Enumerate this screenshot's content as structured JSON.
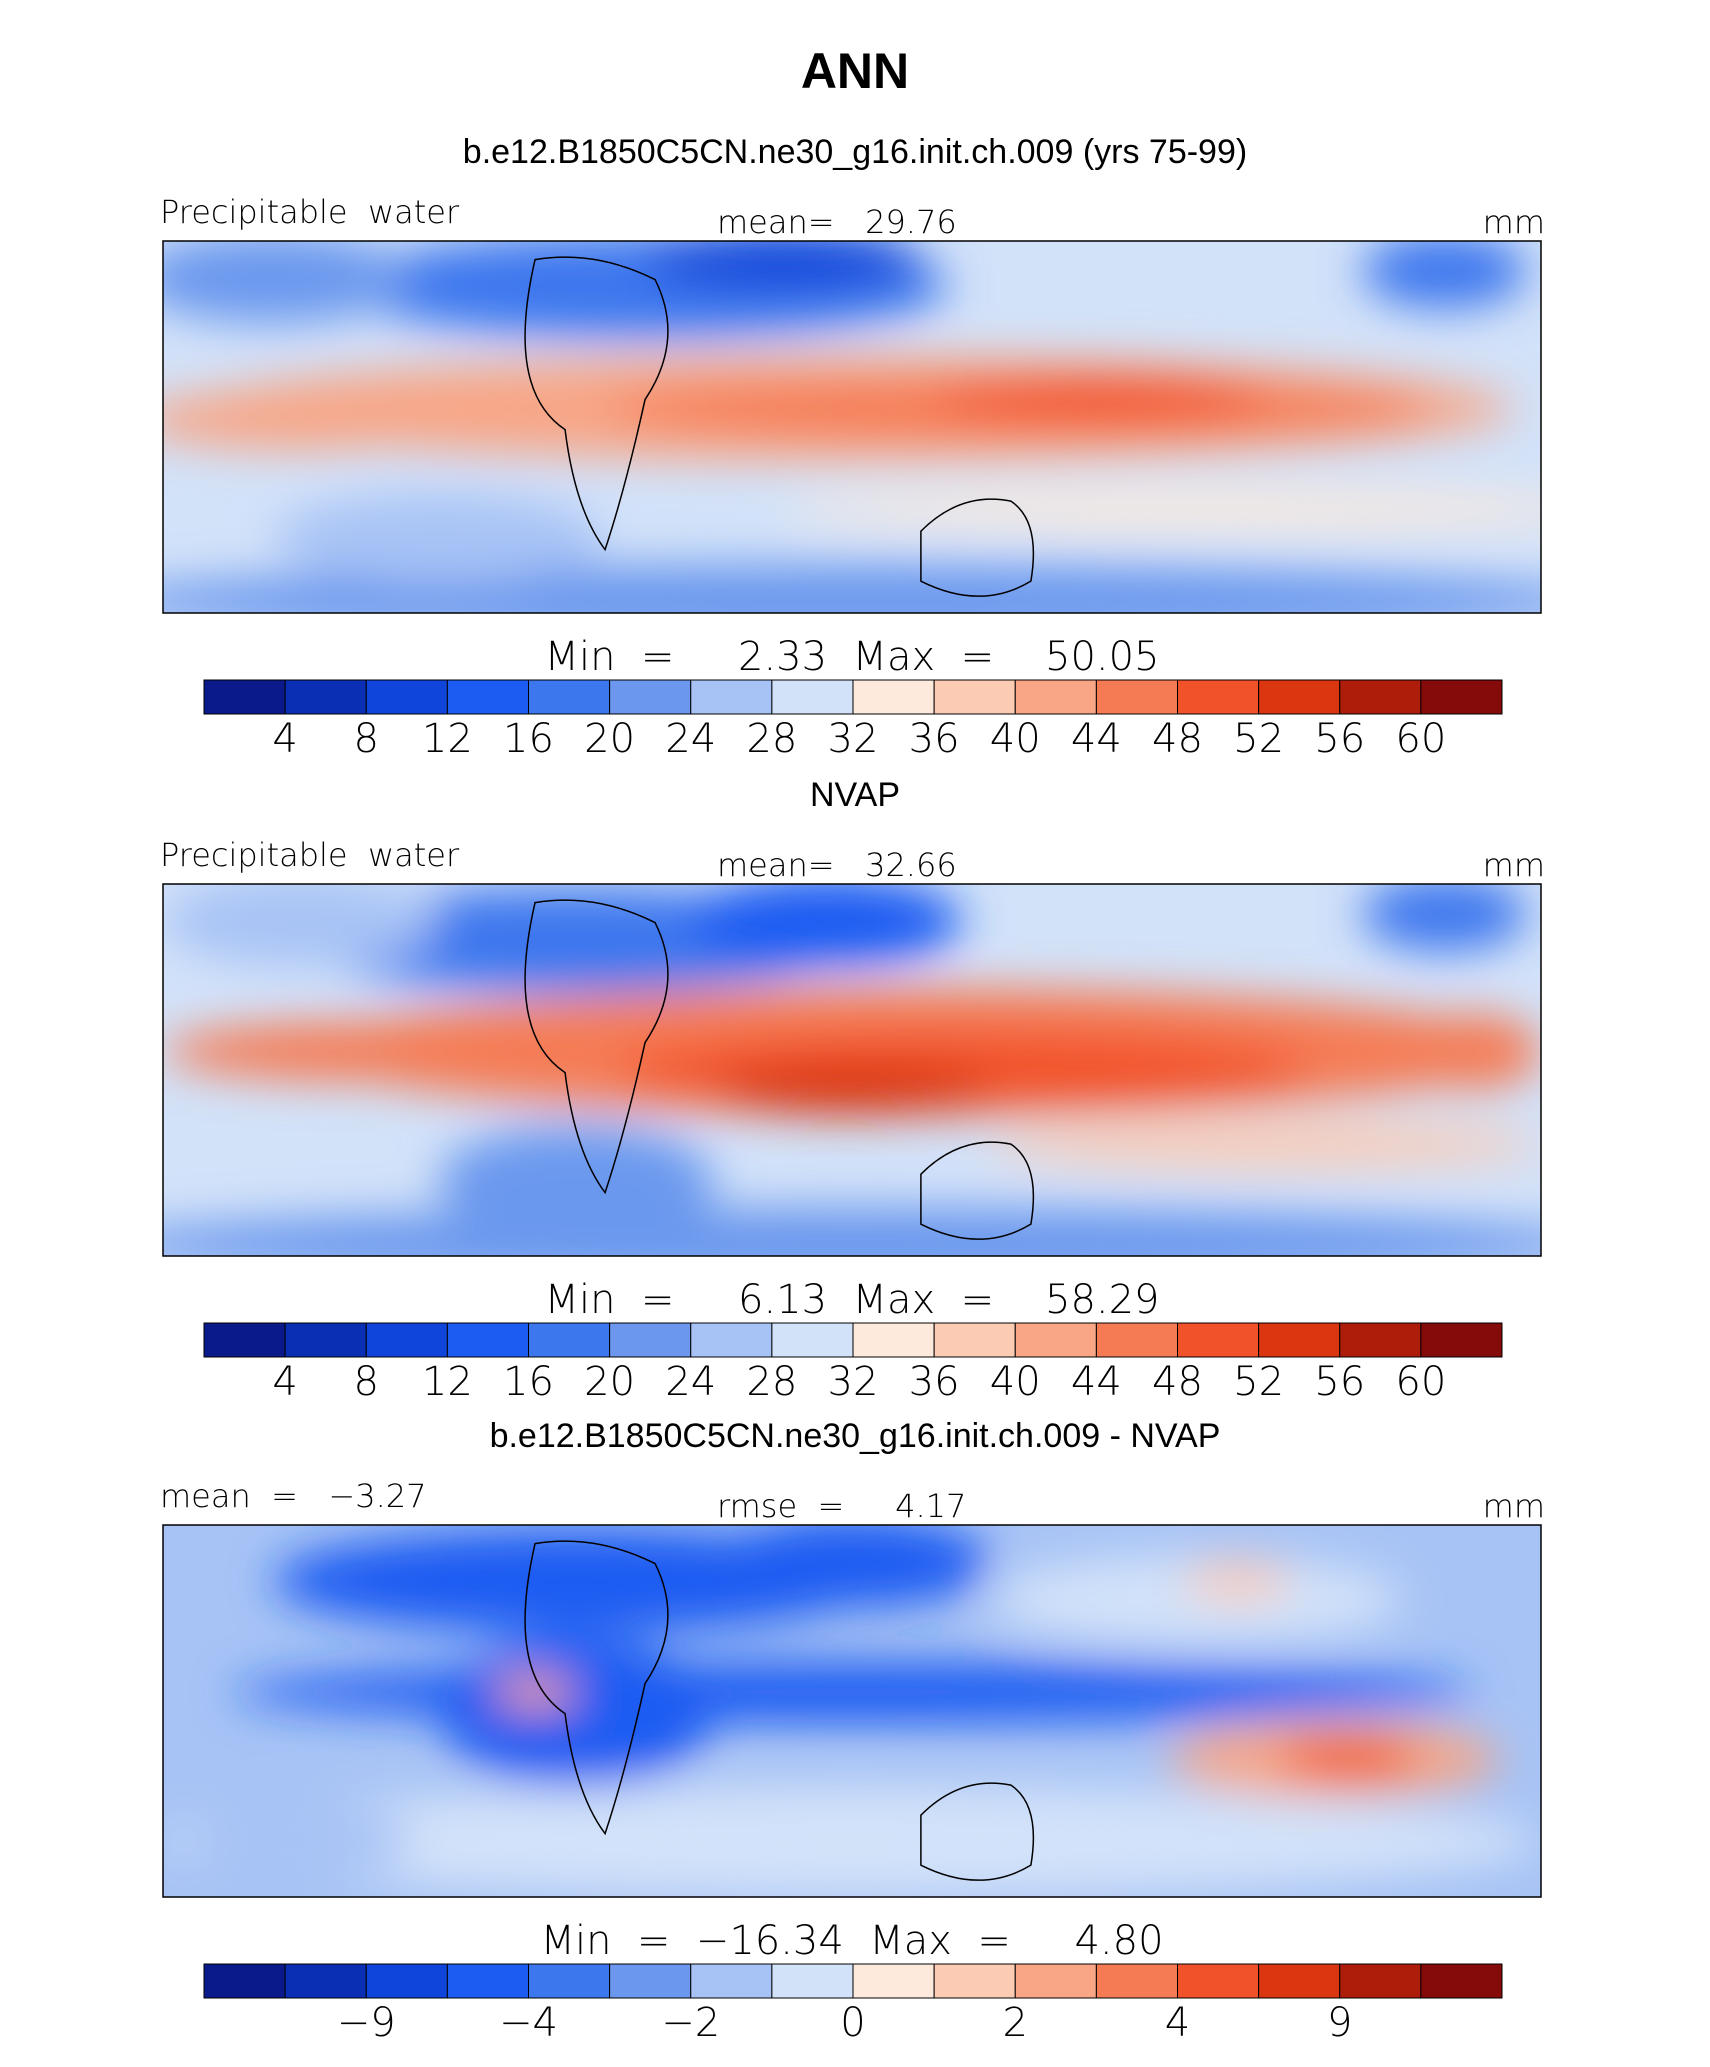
{
  "title": "ANN",
  "colorbar_colors": [
    "#0b1a8a",
    "#0a2fb5",
    "#0f45da",
    "#1d5cf2",
    "#3d77ee",
    "#6b98ee",
    "#a7c3f5",
    "#d2e2f9",
    "#fdeadc",
    "#fccbb4",
    "#f8a686",
    "#f57b55",
    "#f2522a",
    "#da3610",
    "#ae1d0a",
    "#850a0a"
  ],
  "panels": [
    {
      "title": "b.e12.B1850C5CN.ne30_g16.init.ch.009 (yrs 75-99)",
      "header_left": "Precipitable  water",
      "header_center": "mean=   29.76",
      "header_right": "mm",
      "min_max": "Min  =     2.33  Max  =    50.05",
      "tick_labels": [
        "4",
        "8",
        "12",
        "16",
        "20",
        "24",
        "28",
        "32",
        "36",
        "40",
        "44",
        "48",
        "52",
        "56",
        "60"
      ]
    },
    {
      "title": "NVAP",
      "header_left": "Precipitable  water",
      "header_center": "mean=   32.66",
      "header_right": "mm",
      "min_max": "Min  =     6.13  Max  =    58.29",
      "tick_labels": [
        "4",
        "8",
        "12",
        "16",
        "20",
        "24",
        "28",
        "32",
        "36",
        "40",
        "44",
        "48",
        "52",
        "56",
        "60"
      ]
    },
    {
      "title": "b.e12.B1850C5CN.ne30_g16.init.ch.009 - NVAP",
      "header_left": "mean  =   −3.27",
      "header_center": "rmse  =     4.17",
      "header_right": "mm",
      "min_max": "Min  =  −16.34  Max  =     4.80",
      "tick_labels": [
        null,
        "−9",
        null,
        "−4",
        null,
        "−2",
        null,
        "0",
        null,
        "2",
        null,
        "4",
        null,
        "9",
        null
      ]
    }
  ]
}
